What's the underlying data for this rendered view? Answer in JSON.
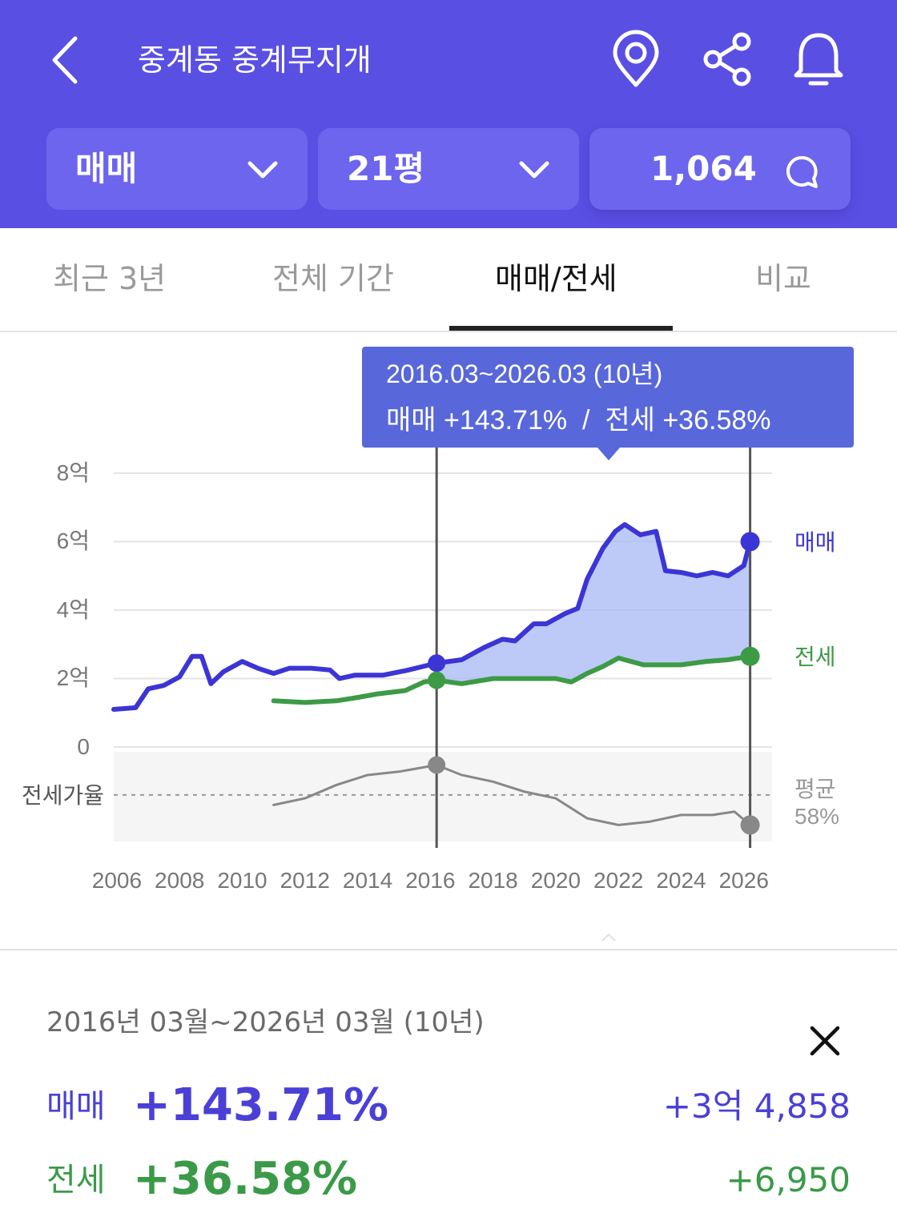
{
  "header": {
    "back_icon": "chevron-left-icon",
    "title": "중계동 중계무지개",
    "icons": [
      "location-pin-icon",
      "share-icon",
      "bell-icon"
    ],
    "deal_select": "매매",
    "area_select": "21평",
    "comment_count": "1,064",
    "comment_icon": "speech-bubble-icon",
    "bg_color": "#5a4fe3"
  },
  "tabs": [
    {
      "label": "최근 3년",
      "active": false
    },
    {
      "label": "전체 기간",
      "active": false
    },
    {
      "label": "매매/전세",
      "active": true
    },
    {
      "label": "비교",
      "active": false
    }
  ],
  "chart": {
    "tooltip_line1": "2016.03~2026.03 (10년)",
    "tooltip_line2": "매매 +143.71%  /  전세 +36.58%",
    "y_ticks": [
      "8억",
      "6억",
      "4억",
      "2억",
      "0"
    ],
    "x_ticks": [
      "2006",
      "2008",
      "2010",
      "2012",
      "2014",
      "2016",
      "2018",
      "2020",
      "2022",
      "2024",
      "2026"
    ],
    "sale_label": "매매",
    "jeonse_label": "전세",
    "ratio_label": "전세가율",
    "avg_label": "평균",
    "avg_value": "58%"
  },
  "chart_data": {
    "type": "line",
    "y_unit": "억",
    "ylim": [
      0,
      8
    ],
    "xlim": [
      2005.9,
      2026.9
    ],
    "selected_range": [
      2016.2,
      2026.2
    ],
    "colors": {
      "sale": "#3b35d6",
      "jeonse": "#3d9a45",
      "ratio": "#888888",
      "fill": "#a7b8f6"
    },
    "series": [
      {
        "name": "매매",
        "points": [
          [
            2005.9,
            1.1
          ],
          [
            2006.6,
            1.15
          ],
          [
            2007.0,
            1.7
          ],
          [
            2007.5,
            1.8
          ],
          [
            2008.0,
            2.05
          ],
          [
            2008.4,
            2.65
          ],
          [
            2008.7,
            2.65
          ],
          [
            2009.0,
            1.85
          ],
          [
            2009.4,
            2.2
          ],
          [
            2010.0,
            2.5
          ],
          [
            2010.5,
            2.3
          ],
          [
            2011.0,
            2.15
          ],
          [
            2011.5,
            2.3
          ],
          [
            2012.2,
            2.3
          ],
          [
            2012.8,
            2.25
          ],
          [
            2013.1,
            2.0
          ],
          [
            2013.6,
            2.1
          ],
          [
            2014.5,
            2.1
          ],
          [
            2015.3,
            2.25
          ],
          [
            2016.2,
            2.45
          ],
          [
            2017.0,
            2.55
          ],
          [
            2017.7,
            2.9
          ],
          [
            2018.3,
            3.15
          ],
          [
            2018.7,
            3.1
          ],
          [
            2019.3,
            3.6
          ],
          [
            2019.7,
            3.6
          ],
          [
            2020.3,
            3.9
          ],
          [
            2020.7,
            4.05
          ],
          [
            2021.0,
            4.9
          ],
          [
            2021.5,
            5.8
          ],
          [
            2021.9,
            6.3
          ],
          [
            2022.2,
            6.5
          ],
          [
            2022.7,
            6.2
          ],
          [
            2023.2,
            6.3
          ],
          [
            2023.5,
            5.15
          ],
          [
            2024.0,
            5.1
          ],
          [
            2024.5,
            5.0
          ],
          [
            2025.0,
            5.1
          ],
          [
            2025.5,
            5.0
          ],
          [
            2026.0,
            5.3
          ],
          [
            2026.2,
            6.0
          ]
        ]
      },
      {
        "name": "전세",
        "points": [
          [
            2011.0,
            1.35
          ],
          [
            2012.0,
            1.3
          ],
          [
            2013.0,
            1.35
          ],
          [
            2013.7,
            1.45
          ],
          [
            2014.3,
            1.55
          ],
          [
            2015.2,
            1.65
          ],
          [
            2015.8,
            1.9
          ],
          [
            2016.2,
            1.95
          ],
          [
            2017.0,
            1.85
          ],
          [
            2018.0,
            2.0
          ],
          [
            2019.0,
            2.0
          ],
          [
            2020.0,
            2.0
          ],
          [
            2020.5,
            1.9
          ],
          [
            2021.0,
            2.15
          ],
          [
            2021.5,
            2.35
          ],
          [
            2022.0,
            2.6
          ],
          [
            2022.8,
            2.4
          ],
          [
            2023.5,
            2.4
          ],
          [
            2024.0,
            2.4
          ],
          [
            2024.8,
            2.5
          ],
          [
            2025.5,
            2.55
          ],
          [
            2026.2,
            2.65
          ]
        ]
      },
      {
        "name": "전세가율",
        "points": [
          [
            2011.0,
            55
          ],
          [
            2012.0,
            57
          ],
          [
            2013.0,
            61
          ],
          [
            2014.0,
            64
          ],
          [
            2015.0,
            65
          ],
          [
            2016.2,
            67
          ],
          [
            2017.0,
            64
          ],
          [
            2018.0,
            62
          ],
          [
            2019.0,
            59
          ],
          [
            2020.0,
            57
          ],
          [
            2020.5,
            54
          ],
          [
            2021.0,
            51
          ],
          [
            2022.0,
            49
          ],
          [
            2023.0,
            50
          ],
          [
            2024.0,
            52
          ],
          [
            2025.0,
            52
          ],
          [
            2025.7,
            53
          ],
          [
            2026.2,
            49
          ]
        ],
        "avg": 58
      }
    ]
  },
  "summary": {
    "range": "2016년 03월~2026년 03월 (10년)",
    "close_icon": "close-icon",
    "sale_label": "매매",
    "sale_pct": "+143.71%",
    "sale_amount": "+3억 4,858",
    "jeonse_label": "전세",
    "jeonse_pct": "+36.58%",
    "jeonse_amount": "+6,950"
  }
}
